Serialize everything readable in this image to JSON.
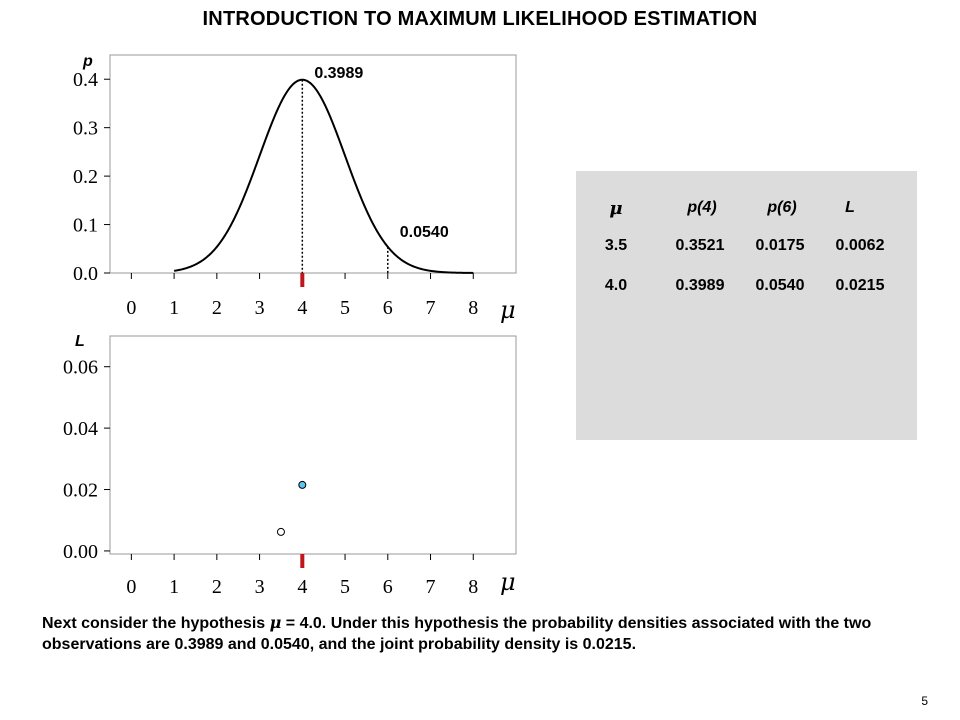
{
  "slide": {
    "title": "INTRODUCTION TO MAXIMUM LIKELIHOOD ESTIMATION",
    "caption_pre": "Next consider the hypothesis ",
    "caption_mu": "μ",
    "caption_post": " = 4.0.  Under this hypothesis the probability densities associated with the two observations are 0.3989 and 0.0540, and the joint probability density is 0.0215.",
    "page_number": "5"
  },
  "table": {
    "headers": [
      "μ",
      "p(4)",
      "p(6)",
      "L"
    ],
    "rows": [
      [
        "3.5",
        "0.3521",
        "0.0175",
        "0.0062"
      ],
      [
        "4.0",
        "0.3989",
        "0.0540",
        "0.0215"
      ]
    ]
  },
  "chart_data": [
    {
      "type": "line",
      "ylabel": "p",
      "xlabel": "μ",
      "xlim": [
        -0.5,
        9.0
      ],
      "ylim": [
        0,
        0.45
      ],
      "x_ticks": [
        "0",
        "1",
        "2",
        "3",
        "4",
        "5",
        "6",
        "7",
        "8"
      ],
      "y_ticks": [
        "0.0",
        "0.1",
        "0.2",
        "0.3",
        "0.4"
      ],
      "curve": {
        "distribution": "normal",
        "mean": 4,
        "sd": 1,
        "x_range": [
          1,
          8
        ]
      },
      "markers": [
        {
          "x": 4,
          "y": 0.3989,
          "label": "0.3989"
        },
        {
          "x": 6,
          "y": 0.054,
          "label": "0.0540"
        }
      ],
      "highlight_x": 4,
      "grid": false,
      "color": "#000000",
      "highlight_color": "#c0161b"
    },
    {
      "type": "scatter",
      "ylabel": "L",
      "xlabel": "μ",
      "xlim": [
        -0.5,
        9.0
      ],
      "ylim": [
        -0.001,
        0.07
      ],
      "x_ticks": [
        "0",
        "1",
        "2",
        "3",
        "4",
        "5",
        "6",
        "7",
        "8"
      ],
      "y_ticks": [
        "0.00",
        "0.02",
        "0.04",
        "0.06"
      ],
      "points": [
        {
          "x": 3.5,
          "y": 0.0062,
          "fill": "#ffffff"
        },
        {
          "x": 4.0,
          "y": 0.0215,
          "fill": "#5bc4f1"
        }
      ],
      "highlight_x": 4,
      "grid": false,
      "highlight_color": "#c0161b"
    }
  ]
}
